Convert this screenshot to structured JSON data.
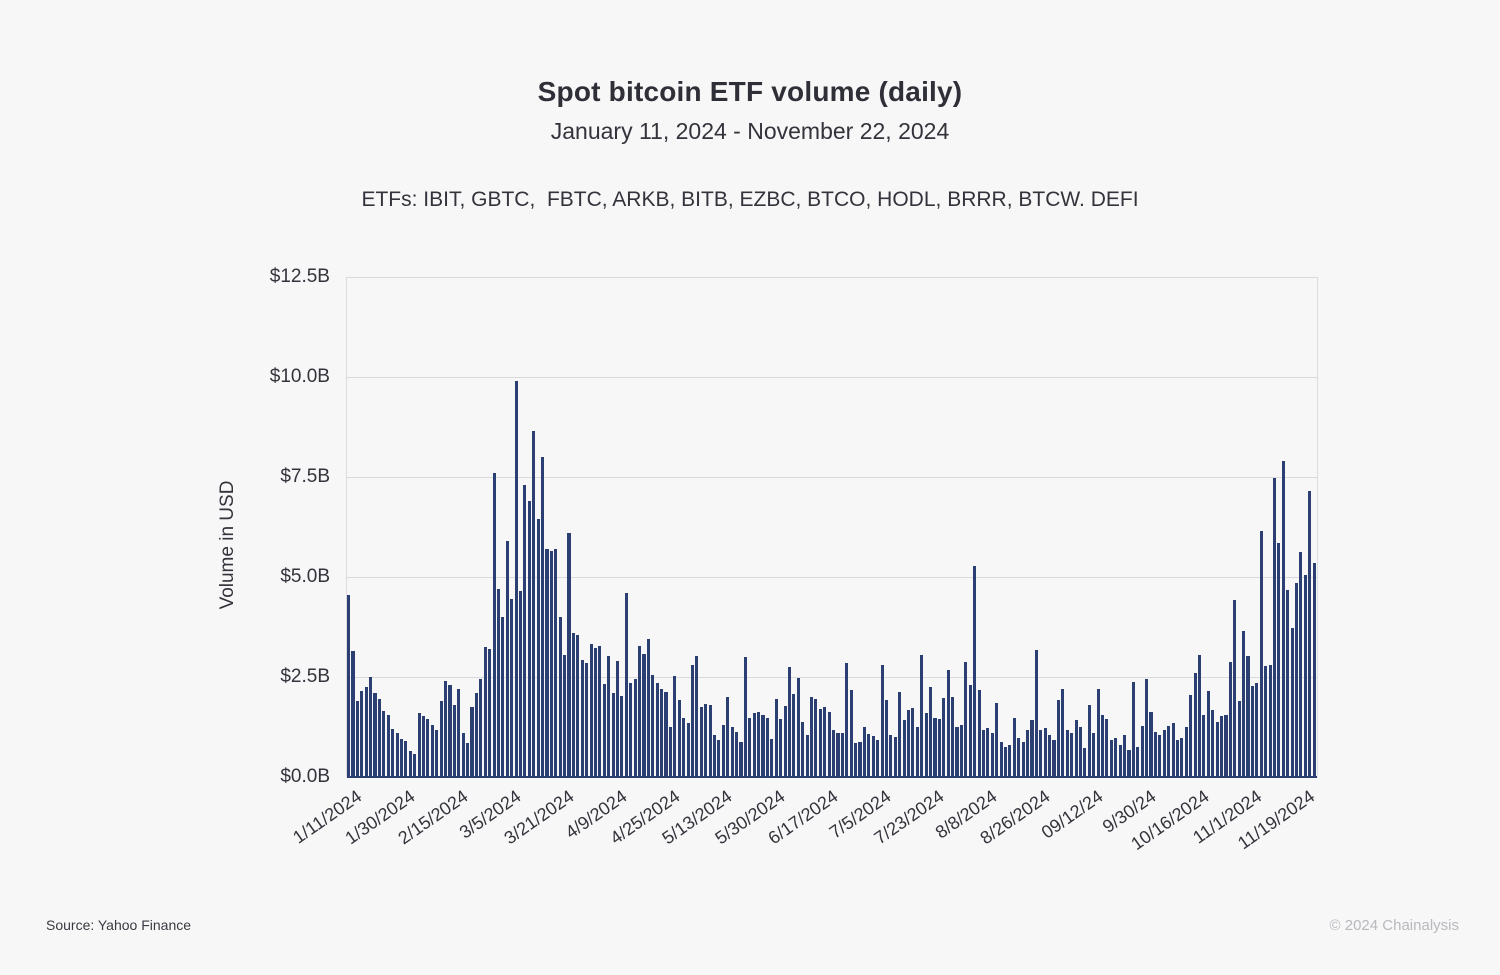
{
  "header": {
    "title": "Spot bitcoin ETF volume (daily)",
    "subtitle": "January 11, 2024 - November 22, 2024",
    "etfs_line": "ETFs: IBIT, GBTC,  FBTC, ARKB, BITB, EZBC, BTCO, HODL, BRRR, BTCW. DEFI"
  },
  "footer": {
    "source": "Source: Yahoo Finance",
    "copyright": "© 2024 Chainalysis"
  },
  "colors": {
    "bar": "#2b3f72",
    "grid": "#d9d9dc",
    "axis_line": "#2b3f72",
    "background": "#f7f7f8",
    "text": "#33333b",
    "copyright_text": "#b9b9bd"
  },
  "chart_data": {
    "type": "bar",
    "title": "Spot bitcoin ETF volume (daily)",
    "subtitle": "January 11, 2024 - November 22, 2024",
    "xlabel": "",
    "ylabel": "Volume in USD",
    "unit": "USD billions",
    "ylim": [
      0,
      12.5
    ],
    "grid": "horizontal",
    "legend": "none",
    "n_bars": 220,
    "date_range": [
      "1/11/2024",
      "11/22/2024"
    ],
    "y_tick_labels": [
      "$0.0B",
      "$2.5B",
      "$5.0B",
      "$7.5B",
      "$10.0B",
      "$12.5B"
    ],
    "y_tick_values": [
      0,
      2.5,
      5.0,
      7.5,
      10.0,
      12.5
    ],
    "x_tick_labels": [
      "1/11/2024",
      "1/30/2024",
      "2/15/2024",
      "3/5/2024",
      "3/21/2024",
      "4/9/2024",
      "4/25/2024",
      "5/13/2024",
      "5/30/2024",
      "6/17/2024",
      "7/5/2024",
      "7/23/2024",
      "8/8/2024",
      "8/26/2024",
      "09/12/24",
      "9/30/24",
      "10/16/2024",
      "11/1/2024",
      "11/19/2024"
    ],
    "x_tick_indices": [
      0,
      12,
      24,
      36,
      48,
      60,
      72,
      84,
      96,
      108,
      120,
      132,
      144,
      156,
      168,
      180,
      192,
      204,
      216
    ],
    "values": [
      4.55,
      3.15,
      1.9,
      2.15,
      2.25,
      2.5,
      2.1,
      1.95,
      1.65,
      1.55,
      1.2,
      1.1,
      0.95,
      0.9,
      0.65,
      0.58,
      1.6,
      1.52,
      1.45,
      1.3,
      1.18,
      1.9,
      2.4,
      2.3,
      1.8,
      2.2,
      1.1,
      0.85,
      1.75,
      2.1,
      2.45,
      3.25,
      3.2,
      7.6,
      4.7,
      4.0,
      5.9,
      4.45,
      9.9,
      4.65,
      7.3,
      6.9,
      8.65,
      6.45,
      8.0,
      5.7,
      5.65,
      5.7,
      4.0,
      3.05,
      6.1,
      3.6,
      3.55,
      2.93,
      2.86,
      3.33,
      3.23,
      3.28,
      2.32,
      3.03,
      2.11,
      2.9,
      2.03,
      4.61,
      2.36,
      2.46,
      3.28,
      3.07,
      3.44,
      2.55,
      2.34,
      2.21,
      2.13,
      1.26,
      2.53,
      1.92,
      1.47,
      1.34,
      2.8,
      3.02,
      1.76,
      1.82,
      1.8,
      1.05,
      0.93,
      1.3,
      2.0,
      1.26,
      1.13,
      0.88,
      3.0,
      1.47,
      1.6,
      1.63,
      1.55,
      1.47,
      0.94,
      1.94,
      1.44,
      1.77,
      2.74,
      2.08,
      2.47,
      1.38,
      1.05,
      2.0,
      1.94,
      1.71,
      1.76,
      1.63,
      1.18,
      1.09,
      1.09,
      2.84,
      2.17,
      0.84,
      0.88,
      1.26,
      1.08,
      1.02,
      0.93,
      2.8,
      1.93,
      1.05,
      1.0,
      2.13,
      1.43,
      1.68,
      1.72,
      1.26,
      3.05,
      1.59,
      2.26,
      1.47,
      1.44,
      1.97,
      2.68,
      2.01,
      1.26,
      1.3,
      2.88,
      2.3,
      5.28,
      2.18,
      1.18,
      1.22,
      1.09,
      1.84,
      0.88,
      0.76,
      0.8,
      1.47,
      0.97,
      0.88,
      1.18,
      1.43,
      3.18,
      1.18,
      1.22,
      1.05,
      0.93,
      1.93,
      2.19,
      1.18,
      1.09,
      1.43,
      1.26,
      0.72,
      1.8,
      1.09,
      2.19,
      1.55,
      1.44,
      0.93,
      0.97,
      0.8,
      1.05,
      0.68,
      2.38,
      0.76,
      1.28,
      2.44,
      1.63,
      1.13,
      1.05,
      1.18,
      1.28,
      1.34,
      0.93,
      0.97,
      1.26,
      2.05,
      2.59,
      3.05,
      1.55,
      2.15,
      1.68,
      1.38,
      1.53,
      1.55,
      2.88,
      4.43,
      1.91,
      3.64,
      3.02,
      2.27,
      2.35,
      6.14,
      2.77,
      2.81,
      7.48,
      5.85,
      7.89,
      4.68,
      3.73,
      4.85,
      5.62,
      5.06,
      7.14,
      5.35
    ]
  }
}
